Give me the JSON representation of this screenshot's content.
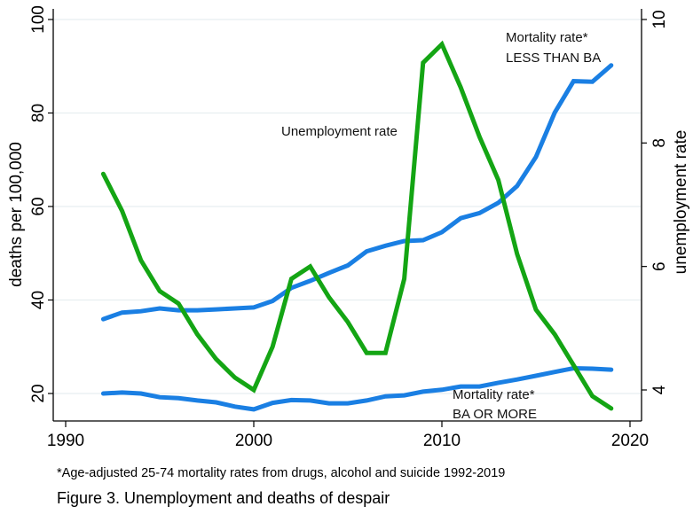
{
  "chart_data": {
    "type": "line",
    "title": "Figure 3. Unemployment and deaths of despair",
    "note": "*Age-adjusted 25-74 mortality rates from drugs, alcohol and suicide 1992-2019",
    "xlabel": "",
    "ylabel": "deaths per 100,000",
    "y2label": "unemployment rate",
    "xlim": [
      1989.5,
      2020.7
    ],
    "ylim": [
      14.2,
      100.5
    ],
    "y2lim": [
      3.53,
      10.05
    ],
    "x_ticks": [
      "1990",
      "2000",
      "2010",
      "2020"
    ],
    "y_ticks": [
      "20",
      "40",
      "60",
      "80",
      "100"
    ],
    "y2_ticks": [
      "4",
      "6",
      "8",
      "10"
    ],
    "grid": true,
    "legend": "none",
    "x": [
      1992,
      1993,
      1994,
      1995,
      1996,
      1997,
      1998,
      1999,
      2000,
      2001,
      2002,
      2003,
      2004,
      2005,
      2006,
      2007,
      2008,
      2009,
      2010,
      2011,
      2012,
      2013,
      2014,
      2015,
      2016,
      2017,
      2018,
      2019
    ],
    "series": [
      {
        "name": "Mortality rate* LESS THAN BA",
        "axis": "left",
        "color": "#1a7fe3",
        "values": [
          35.9,
          37.3,
          37.6,
          38.2,
          37.8,
          37.8,
          38.0,
          38.2,
          38.4,
          39.8,
          42.6,
          44.1,
          45.8,
          47.4,
          50.4,
          51.6,
          52.6,
          52.8,
          54.5,
          57.5,
          58.6,
          60.8,
          64.4,
          70.6,
          80.1,
          86.8,
          86.7,
          90.2
        ]
      },
      {
        "name": "Mortality rate* BA OR MORE",
        "axis": "left",
        "color": "#1a7fe3",
        "values": [
          20.0,
          20.2,
          20.0,
          19.2,
          19.0,
          18.5,
          18.1,
          17.2,
          16.6,
          18.0,
          18.6,
          18.5,
          17.9,
          17.9,
          18.5,
          19.4,
          19.6,
          20.4,
          20.8,
          21.5,
          21.5,
          22.3,
          23.0,
          23.8,
          24.6,
          25.4,
          25.3,
          25.1
        ]
      },
      {
        "name": "Unemployment rate",
        "axis": "right",
        "color": "#14a514",
        "values": [
          7.5,
          6.9,
          6.1,
          5.6,
          5.4,
          4.9,
          4.5,
          4.2,
          4.0,
          4.7,
          5.8,
          6.0,
          5.5,
          5.1,
          4.6,
          4.6,
          5.8,
          9.3,
          9.6,
          8.9,
          8.1,
          7.4,
          6.2,
          5.3,
          4.9,
          4.4,
          3.9,
          3.7
        ]
      }
    ],
    "annotations": {
      "less_than_ba_line1": "Mortality rate*",
      "less_than_ba_line2": "LESS THAN BA",
      "ba_or_more_line1": "Mortality rate*",
      "ba_or_more_line2": "BA OR MORE",
      "unemployment": "Unemployment rate"
    }
  }
}
